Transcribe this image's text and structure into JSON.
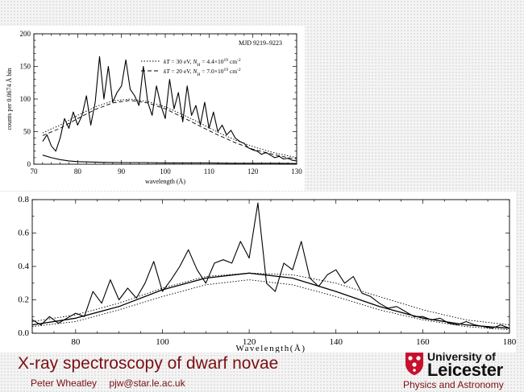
{
  "chart_data": [
    {
      "type": "line",
      "annotation": "MJD 9219–9223",
      "xlabel": "wavelength (Å)",
      "ylabel": "counts per 0.0674 Å bin",
      "xlim": [
        70,
        130
      ],
      "ylim": [
        0,
        200
      ],
      "x_ticks": [
        70,
        80,
        90,
        100,
        110,
        120,
        130
      ],
      "y_ticks": [
        0,
        50,
        100,
        150,
        200
      ],
      "legend_position": "top-right",
      "legend": [
        {
          "label": "kT = 30 eV, N_H = 4.4×10^19 cm^-2",
          "style": "dotted"
        },
        {
          "label": "kT = 20 eV, N_H = 7.0×10^19 cm^-2",
          "style": "dashed"
        }
      ],
      "series": [
        {
          "style": "solid",
          "x": [
            72,
            73,
            74,
            75,
            76,
            77,
            78,
            79,
            80,
            81,
            82,
            83,
            84,
            85,
            86,
            87,
            88,
            89,
            90,
            91,
            92,
            93,
            94,
            95,
            96,
            97,
            98,
            99,
            100,
            101,
            102,
            103,
            104,
            105,
            106,
            107,
            108,
            109,
            110,
            111,
            112,
            113,
            114,
            115,
            116,
            117,
            118,
            119,
            120,
            121,
            122,
            123,
            124,
            125,
            126,
            127,
            128,
            129,
            130
          ],
          "y": [
            35,
            45,
            28,
            20,
            40,
            70,
            55,
            80,
            60,
            75,
            105,
            60,
            95,
            165,
            100,
            150,
            95,
            110,
            120,
            160,
            115,
            105,
            90,
            150,
            95,
            75,
            120,
            90,
            70,
            130,
            85,
            110,
            65,
            120,
            75,
            90,
            60,
            95,
            55,
            80,
            50,
            60,
            45,
            52,
            40,
            35,
            32,
            25,
            22,
            20,
            15,
            18,
            14,
            10,
            12,
            8,
            9,
            6,
            5
          ]
        },
        {
          "style": "solid",
          "x": [
            72,
            74,
            76,
            78,
            80,
            85,
            90,
            95,
            100,
            105,
            110,
            115,
            120,
            125,
            130
          ],
          "y": [
            14,
            10,
            7,
            5,
            4,
            3,
            2.5,
            2.5,
            2,
            2,
            2,
            1.5,
            1.5,
            1.5,
            1
          ]
        },
        {
          "style": "dotted",
          "x": [
            72,
            76,
            80,
            84,
            88,
            92,
            96,
            100,
            104,
            108,
            112,
            116,
            120,
            124,
            128,
            130
          ],
          "y": [
            48,
            60,
            75,
            88,
            97,
            100,
            96,
            88,
            76,
            63,
            49,
            37,
            27,
            19,
            13,
            10
          ]
        },
        {
          "style": "dashed",
          "x": [
            72,
            76,
            80,
            84,
            88,
            92,
            96,
            100,
            104,
            108,
            112,
            116,
            120,
            124,
            128,
            130
          ],
          "y": [
            44,
            55,
            70,
            84,
            94,
            98,
            94,
            85,
            72,
            58,
            45,
            33,
            23,
            16,
            10,
            8
          ]
        }
      ]
    },
    {
      "type": "line",
      "xlabel": "Wavelength(Å)",
      "xlim": [
        70,
        180
      ],
      "ylim": [
        0,
        0.8
      ],
      "x_ticks": [
        80,
        100,
        120,
        140,
        160,
        180
      ],
      "y_ticks": [
        0.0,
        0.2,
        0.4,
        0.6,
        0.8
      ],
      "y_tick_labels": [
        "0.0",
        "0.2",
        "0.4",
        "0.6",
        "0.8"
      ],
      "series": [
        {
          "style": "solid",
          "x": [
            70,
            72,
            74,
            76,
            78,
            80,
            82,
            84,
            86,
            88,
            90,
            92,
            94,
            96,
            98,
            100,
            102,
            104,
            106,
            108,
            110,
            112,
            114,
            116,
            118,
            120,
            122,
            124,
            126,
            128,
            130,
            132,
            134,
            136,
            138,
            140,
            142,
            144,
            146,
            148,
            150,
            152,
            154,
            156,
            158,
            160,
            162,
            164,
            166,
            168,
            170,
            172,
            174,
            176,
            178,
            180
          ],
          "y": [
            0.08,
            0.05,
            0.1,
            0.06,
            0.09,
            0.12,
            0.1,
            0.25,
            0.18,
            0.32,
            0.2,
            0.27,
            0.21,
            0.3,
            0.43,
            0.25,
            0.32,
            0.4,
            0.5,
            0.38,
            0.3,
            0.42,
            0.44,
            0.42,
            0.55,
            0.45,
            0.78,
            0.3,
            0.25,
            0.42,
            0.38,
            0.55,
            0.33,
            0.28,
            0.35,
            0.38,
            0.3,
            0.34,
            0.24,
            0.22,
            0.18,
            0.15,
            0.16,
            0.13,
            0.1,
            0.1,
            0.08,
            0.09,
            0.06,
            0.05,
            0.07,
            0.05,
            0.04,
            0.03,
            0.05,
            0.03
          ]
        },
        {
          "style": "smooth",
          "x": [
            70,
            80,
            90,
            100,
            110,
            120,
            130,
            140,
            150,
            160,
            170,
            180
          ],
          "y": [
            0.05,
            0.09,
            0.16,
            0.26,
            0.33,
            0.36,
            0.33,
            0.25,
            0.16,
            0.09,
            0.05,
            0.03
          ]
        },
        {
          "style": "dotted",
          "x": [
            70,
            80,
            90,
            100,
            110,
            120,
            130,
            140,
            150,
            160,
            170,
            180
          ],
          "y": [
            0.07,
            0.11,
            0.18,
            0.27,
            0.34,
            0.36,
            0.35,
            0.3,
            0.22,
            0.14,
            0.08,
            0.05
          ]
        },
        {
          "style": "dotted",
          "x": [
            70,
            80,
            90,
            100,
            110,
            120,
            130,
            140,
            150,
            160,
            170,
            180
          ],
          "y": [
            0.04,
            0.07,
            0.14,
            0.22,
            0.29,
            0.32,
            0.29,
            0.22,
            0.14,
            0.08,
            0.04,
            0.02
          ]
        }
      ]
    }
  ],
  "footer": {
    "title": "X-ray spectroscopy of dwarf novae",
    "author": "Peter Wheatley",
    "email": "pjw@star.le.ac.uk",
    "logo_top": "University of",
    "logo_bottom": "Leicester",
    "department": "Physics and Astronomy"
  },
  "colors": {
    "title": "#7a0f12",
    "logo_red": "#c8102e",
    "ink": "#000000"
  }
}
